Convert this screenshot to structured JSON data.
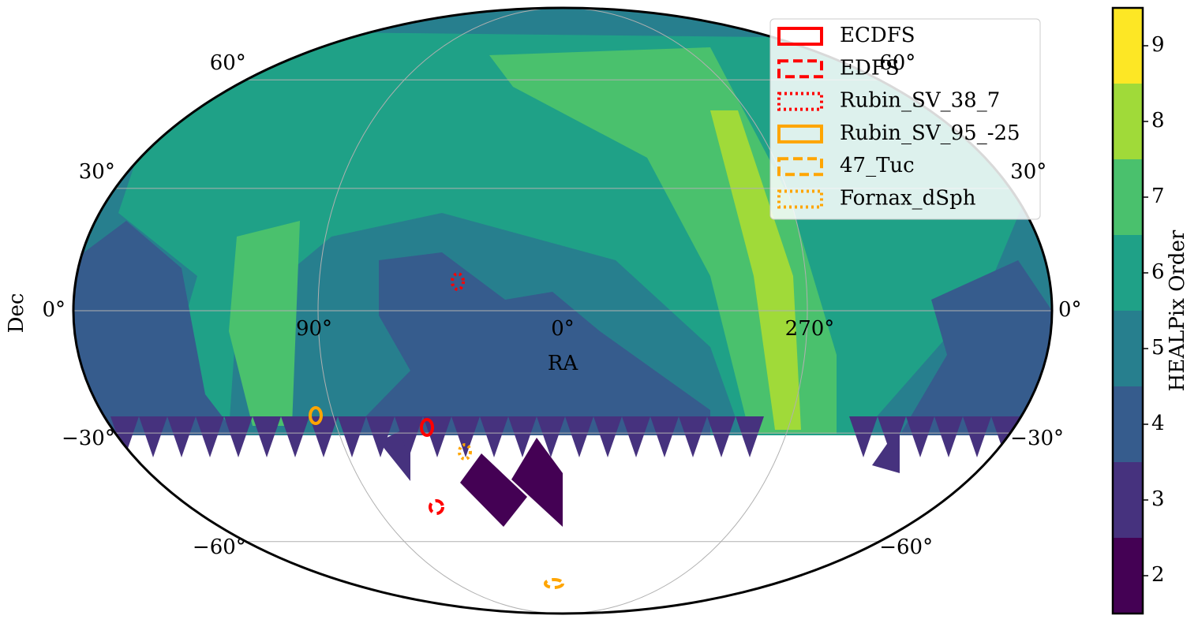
{
  "map": {
    "xlabel": "RA",
    "ylabel": "Dec",
    "ra_tick_labels": [
      "90°",
      "0°",
      "270°"
    ],
    "dec_tick_labels_left": [
      "60°",
      "30°",
      "0°",
      "−30°",
      "−60°"
    ],
    "dec_tick_labels_right": [
      "60°",
      "30°",
      "0°",
      "−30°",
      "−60°"
    ]
  },
  "legend": [
    {
      "label": "ECDFS",
      "color": "#ff0000",
      "style": "solid"
    },
    {
      "label": "EDFS",
      "color": "#ff0000",
      "style": "dashed"
    },
    {
      "label": "Rubin_SV_38_7",
      "color": "#ff0000",
      "style": "dotted"
    },
    {
      "label": "Rubin_SV_95_-25",
      "color": "#ffa500",
      "style": "solid"
    },
    {
      "label": "47_Tuc",
      "color": "#ffa500",
      "style": "dashed"
    },
    {
      "label": "Fornax_dSph",
      "color": "#ffa500",
      "style": "dotted"
    }
  ],
  "colorbar": {
    "label": "HEALPix Order",
    "lim": [
      1.5,
      9.5
    ],
    "ticks": [
      2,
      3,
      4,
      5,
      6,
      7,
      8,
      9
    ],
    "colors": [
      "#440154",
      "#46327e",
      "#365c8d",
      "#277f8e",
      "#1fa187",
      "#4ac16d",
      "#a0da39",
      "#fde725"
    ]
  }
}
